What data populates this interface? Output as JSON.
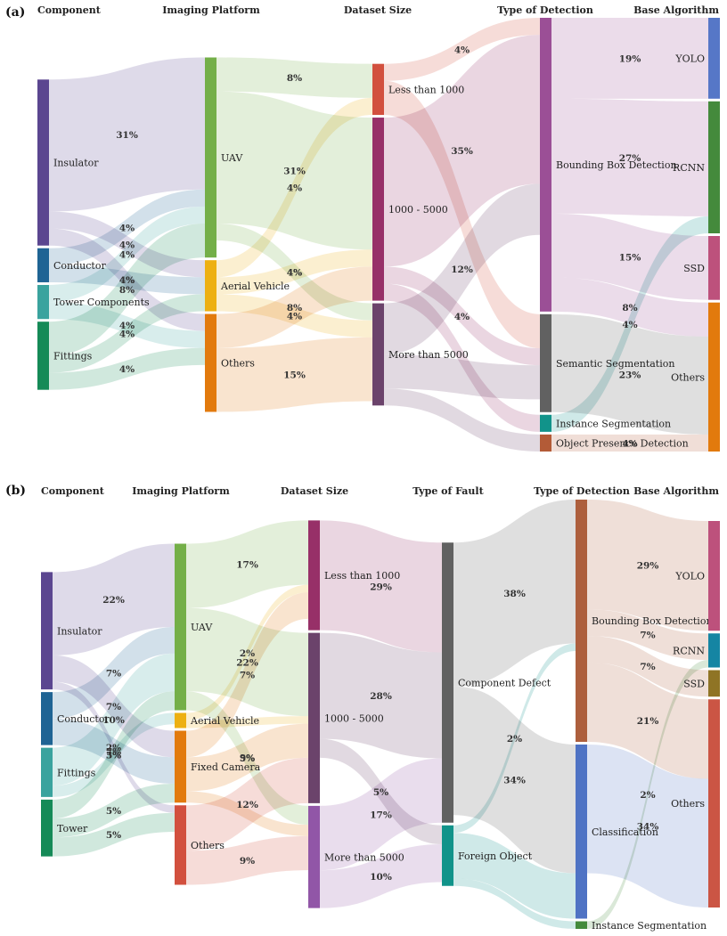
{
  "panels": [
    {
      "label": "(a)",
      "headers": [
        "Component",
        "Imaging Platform",
        "Dataset Size",
        "Type of Detection",
        "Base Algorithm"
      ],
      "nodes": [
        {
          "id": "a_ins",
          "name": "Insulator",
          "color": "#5B4690"
        },
        {
          "id": "a_con",
          "name": "Conductor",
          "color": "#1F6494"
        },
        {
          "id": "a_tow",
          "name": "Tower Components",
          "color": "#3AA39E"
        },
        {
          "id": "a_fit",
          "name": "Fittings",
          "color": "#158A57"
        },
        {
          "id": "a_uav",
          "name": "UAV",
          "color": "#74AF48"
        },
        {
          "id": "a_aer",
          "name": "Aerial Vehicle",
          "color": "#EDB012"
        },
        {
          "id": "a_oth",
          "name": "Others",
          "color": "#E27A0D"
        },
        {
          "id": "a_lt",
          "name": "Less than 1000",
          "color": "#D2503E"
        },
        {
          "id": "a_mid",
          "name": "1000 - 5000",
          "color": "#973068"
        },
        {
          "id": "a_gt",
          "name": "More than 5000",
          "color": "#6B436B"
        },
        {
          "id": "a_bb",
          "name": "Bounding Box Detection",
          "color": "#9B4F96"
        },
        {
          "id": "a_ss",
          "name": "Semantic Segmentation",
          "color": "#616161"
        },
        {
          "id": "a_is",
          "name": "Instance Segmentation",
          "color": "#11938A"
        },
        {
          "id": "a_op",
          "name": "Object Presence Detection",
          "color": "#B35B37"
        },
        {
          "id": "a_yolo",
          "name": "YOLO",
          "color": "#5677C7"
        },
        {
          "id": "a_rcnn",
          "name": "RCNN",
          "color": "#448A3C"
        },
        {
          "id": "a_ssd",
          "name": "SSD",
          "color": "#BD517C"
        },
        {
          "id": "a_others",
          "name": "Others",
          "color": "#E27A0D"
        }
      ],
      "links": [
        {
          "source": "a_ins",
          "target": "a_uav",
          "value": 31,
          "label": "31%"
        },
        {
          "source": "a_ins",
          "target": "a_aer",
          "value": 4,
          "label": "4%"
        },
        {
          "source": "a_ins",
          "target": "a_oth",
          "value": 4,
          "label": "4%"
        },
        {
          "source": "a_con",
          "target": "a_uav",
          "value": 4,
          "label": "4%"
        },
        {
          "source": "a_con",
          "target": "a_aer",
          "value": 4,
          "label": "4%"
        },
        {
          "source": "a_tow",
          "target": "a_uav",
          "value": 4,
          "label": "4%"
        },
        {
          "source": "a_tow",
          "target": "a_oth",
          "value": 4,
          "label": "4%"
        },
        {
          "source": "a_fit",
          "target": "a_uav",
          "value": 8,
          "label": "8%"
        },
        {
          "source": "a_fit",
          "target": "a_aer",
          "value": 4,
          "label": "4%"
        },
        {
          "source": "a_fit",
          "target": "a_oth",
          "value": 4,
          "label": "4%"
        },
        {
          "source": "a_uav",
          "target": "a_lt",
          "value": 8,
          "label": "8%"
        },
        {
          "source": "a_uav",
          "target": "a_mid",
          "value": 31,
          "label": "31%"
        },
        {
          "source": "a_uav",
          "target": "a_gt",
          "value": 4,
          "label": "4%"
        },
        {
          "source": "a_aer",
          "target": "a_lt",
          "value": 4,
          "label": "4%"
        },
        {
          "source": "a_aer",
          "target": "a_mid",
          "value": 4,
          "label": "4%"
        },
        {
          "source": "a_aer",
          "target": "a_gt",
          "value": 4,
          "label": "4%"
        },
        {
          "source": "a_oth",
          "target": "a_mid",
          "value": 8,
          "label": "8%"
        },
        {
          "source": "a_oth",
          "target": "a_gt",
          "value": 15,
          "label": "15%"
        },
        {
          "source": "a_lt",
          "target": "a_bb",
          "value": 4,
          "label": "4%"
        },
        {
          "source": "a_lt",
          "target": "a_ss",
          "value": 8,
          "label": ""
        },
        {
          "source": "a_mid",
          "target": "a_bb",
          "value": 35,
          "label": "35%"
        },
        {
          "source": "a_mid",
          "target": "a_ss",
          "value": 4,
          "label": "4%"
        },
        {
          "source": "a_mid",
          "target": "a_is",
          "value": 4,
          "label": ""
        },
        {
          "source": "a_gt",
          "target": "a_bb",
          "value": 12,
          "label": "12%"
        },
        {
          "source": "a_gt",
          "target": "a_ss",
          "value": 8,
          "label": ""
        },
        {
          "source": "a_gt",
          "target": "a_op",
          "value": 4,
          "label": ""
        },
        {
          "source": "a_bb",
          "target": "a_yolo",
          "value": 19,
          "label": "19%"
        },
        {
          "source": "a_bb",
          "target": "a_rcnn",
          "value": 27,
          "label": "27%"
        },
        {
          "source": "a_bb",
          "target": "a_ssd",
          "value": 15,
          "label": "15%"
        },
        {
          "source": "a_bb",
          "target": "a_others",
          "value": 8,
          "label": "8%"
        },
        {
          "source": "a_ss",
          "target": "a_others",
          "value": 23,
          "label": "23%"
        },
        {
          "source": "a_is",
          "target": "a_rcnn",
          "value": 4,
          "label": "4%"
        },
        {
          "source": "a_op",
          "target": "a_others",
          "value": 4,
          "label": "4%"
        }
      ]
    },
    {
      "label": "(b)",
      "headers": [
        "Component",
        "Imaging Platform",
        "Dataset Size",
        "Type of Fault",
        "Type of Detection",
        "Base Algorithm"
      ],
      "nodes": [
        {
          "id": "b_ins",
          "name": "Insulator",
          "color": "#5B4690"
        },
        {
          "id": "b_con",
          "name": "Conductor",
          "color": "#1F6494"
        },
        {
          "id": "b_fit",
          "name": "Fittings",
          "color": "#3AA39E"
        },
        {
          "id": "b_tow",
          "name": "Tower",
          "color": "#158A57"
        },
        {
          "id": "b_uav",
          "name": "UAV",
          "color": "#74AF48"
        },
        {
          "id": "b_aer",
          "name": "Aerial Vehicle",
          "color": "#EDB012"
        },
        {
          "id": "b_fix",
          "name": "Fixed Camera",
          "color": "#E27A0D"
        },
        {
          "id": "b_oth",
          "name": "Others",
          "color": "#D2503E"
        },
        {
          "id": "b_lt",
          "name": "Less than 1000",
          "color": "#973068"
        },
        {
          "id": "b_mid",
          "name": "1000 - 5000",
          "color": "#6B436B"
        },
        {
          "id": "b_gt",
          "name": "More than 5000",
          "color": "#9156A7"
        },
        {
          "id": "b_cd",
          "name": "Component Defect",
          "color": "#616161"
        },
        {
          "id": "b_fo",
          "name": "Foreign Object",
          "color": "#11938A"
        },
        {
          "id": "b_bb",
          "name": "Bounding Box Detection",
          "color": "#AD5F3D"
        },
        {
          "id": "b_cl",
          "name": "Classification",
          "color": "#4F73C4"
        },
        {
          "id": "b_is",
          "name": "Instance Segmentation",
          "color": "#448A3C"
        },
        {
          "id": "b_yolo",
          "name": "YOLO",
          "color": "#BD517C"
        },
        {
          "id": "b_rcnn",
          "name": "RCNN",
          "color": "#1585A3"
        },
        {
          "id": "b_ssd",
          "name": "SSD",
          "color": "#8F7425"
        },
        {
          "id": "b_others",
          "name": "Others",
          "color": "#CB5544"
        }
      ],
      "links": [
        {
          "source": "b_ins",
          "target": "b_uav",
          "value": 22,
          "label": "22%"
        },
        {
          "source": "b_ins",
          "target": "b_fix",
          "value": 7,
          "label": "7%"
        },
        {
          "source": "b_ins",
          "target": "b_oth",
          "value": 2,
          "label": "2%"
        },
        {
          "source": "b_con",
          "target": "b_uav",
          "value": 7,
          "label": "7%"
        },
        {
          "source": "b_con",
          "target": "b_fix",
          "value": 7,
          "label": "7%"
        },
        {
          "source": "b_fit",
          "target": "b_uav",
          "value": 10,
          "label": "10%"
        },
        {
          "source": "b_fit",
          "target": "b_aer",
          "value": 3,
          "label": "3%"
        },
        {
          "source": "b_tow",
          "target": "b_uav",
          "value": 5,
          "label": "5%"
        },
        {
          "source": "b_tow",
          "target": "b_oth",
          "value": 5,
          "label": "5%"
        },
        {
          "source": "b_tow",
          "target": "b_fix",
          "value": 5,
          "label": "5%"
        },
        {
          "source": "b_uav",
          "target": "b_lt",
          "value": 17,
          "label": "17%"
        },
        {
          "source": "b_uav",
          "target": "b_mid",
          "value": 22,
          "label": "22%"
        },
        {
          "source": "b_uav",
          "target": "b_gt",
          "value": 5,
          "label": "5%"
        },
        {
          "source": "b_aer",
          "target": "b_lt",
          "value": 2,
          "label": "2%"
        },
        {
          "source": "b_aer",
          "target": "b_mid",
          "value": 2,
          "label": ""
        },
        {
          "source": "b_fix",
          "target": "b_lt",
          "value": 7,
          "label": "7%"
        },
        {
          "source": "b_fix",
          "target": "b_mid",
          "value": 9,
          "label": "9%"
        },
        {
          "source": "b_fix",
          "target": "b_gt",
          "value": 3,
          "label": ""
        },
        {
          "source": "b_oth",
          "target": "b_mid",
          "value": 12,
          "label": "12%"
        },
        {
          "source": "b_oth",
          "target": "b_gt",
          "value": 9,
          "label": "9%"
        },
        {
          "source": "b_lt",
          "target": "b_cd",
          "value": 29,
          "label": "29%"
        },
        {
          "source": "b_mid",
          "target": "b_cd",
          "value": 28,
          "label": "28%"
        },
        {
          "source": "b_mid",
          "target": "b_fo",
          "value": 5,
          "label": "5%"
        },
        {
          "source": "b_gt",
          "target": "b_cd",
          "value": 17,
          "label": "17%"
        },
        {
          "source": "b_gt",
          "target": "b_fo",
          "value": 10,
          "label": "10%"
        },
        {
          "source": "b_cd",
          "target": "b_bb",
          "value": 38,
          "label": "38%"
        },
        {
          "source": "b_cd",
          "target": "b_cl",
          "value": 34,
          "label": "34%"
        },
        {
          "source": "b_fo",
          "target": "b_bb",
          "value": 2,
          "label": "2%"
        },
        {
          "source": "b_fo",
          "target": "b_cl",
          "value": 12,
          "label": ""
        },
        {
          "source": "b_fo",
          "target": "b_is",
          "value": 2,
          "label": ""
        },
        {
          "source": "b_bb",
          "target": "b_yolo",
          "value": 29,
          "label": "29%"
        },
        {
          "source": "b_bb",
          "target": "b_rcnn",
          "value": 7,
          "label": "7%"
        },
        {
          "source": "b_bb",
          "target": "b_ssd",
          "value": 7,
          "label": "7%"
        },
        {
          "source": "b_bb",
          "target": "b_others",
          "value": 21,
          "label": "21%"
        },
        {
          "source": "b_cl",
          "target": "b_others",
          "value": 34,
          "label": "34%"
        },
        {
          "source": "b_is",
          "target": "b_rcnn",
          "value": 2,
          "label": "2%"
        }
      ]
    }
  ]
}
